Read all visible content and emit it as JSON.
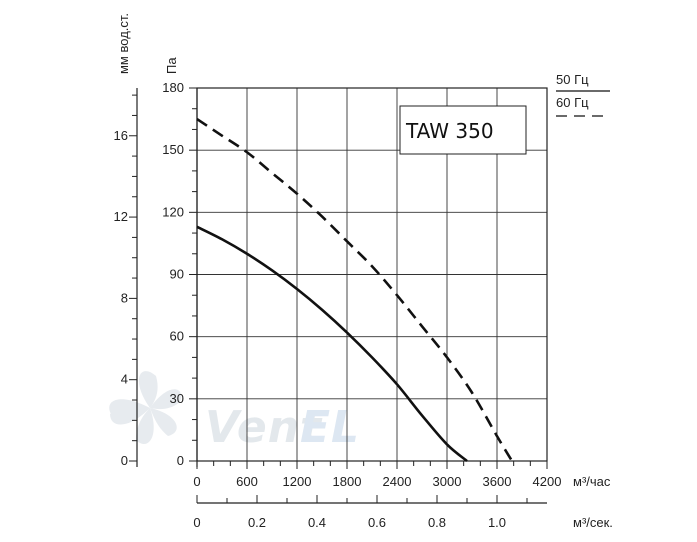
{
  "chart_data": {
    "type": "line",
    "title": "TAW 350",
    "xlabel": "м³/час",
    "x2label": "м³/сек.",
    "ylabel": "Па",
    "y2label": "мм вод.ст.",
    "xlim": [
      0,
      4200
    ],
    "ylim": [
      0,
      180
    ],
    "x_ticks": [
      0,
      600,
      1200,
      1800,
      2400,
      3000,
      3600,
      4200
    ],
    "x_tick_labels": [
      "0",
      "600",
      "1200",
      "1800",
      "2400",
      "3000",
      "3600",
      "4200"
    ],
    "x2_ticks": [
      0,
      0.2,
      0.4,
      0.6,
      0.8,
      1.0
    ],
    "x2_tick_labels": [
      "0",
      "0.2",
      "0.4",
      "0.6",
      "0.8",
      "1.0"
    ],
    "x2lim": [
      0,
      1.1667
    ],
    "y_ticks": [
      0,
      30,
      60,
      90,
      120,
      150,
      180
    ],
    "y_tick_labels": [
      "0",
      "30",
      "60",
      "90",
      "120",
      "150",
      "180"
    ],
    "y2_ticks": [
      0,
      4,
      8,
      12,
      16
    ],
    "y2_tick_labels": [
      "0",
      "4",
      "8",
      "12",
      "16"
    ],
    "y2lim": [
      0,
      18.35
    ],
    "grid": true,
    "legend_position": "top-right",
    "series": [
      {
        "name": "50 Гц",
        "style": "solid",
        "color": "#111111",
        "x": [
          0,
          300,
          600,
          900,
          1200,
          1500,
          1800,
          2100,
          2400,
          2700,
          3000,
          3240
        ],
        "y": [
          113,
          107,
          100,
          92,
          83,
          73,
          62,
          50,
          37,
          22,
          8,
          0
        ]
      },
      {
        "name": "60 Гц",
        "style": "dashed",
        "color": "#111111",
        "x": [
          0,
          300,
          600,
          900,
          1200,
          1500,
          1800,
          2100,
          2400,
          2700,
          3000,
          3300,
          3600,
          3780
        ],
        "y": [
          165,
          157,
          149,
          139,
          129,
          118,
          106,
          94,
          80,
          65,
          50,
          33,
          12,
          0
        ]
      }
    ]
  },
  "watermark": "VentEL"
}
